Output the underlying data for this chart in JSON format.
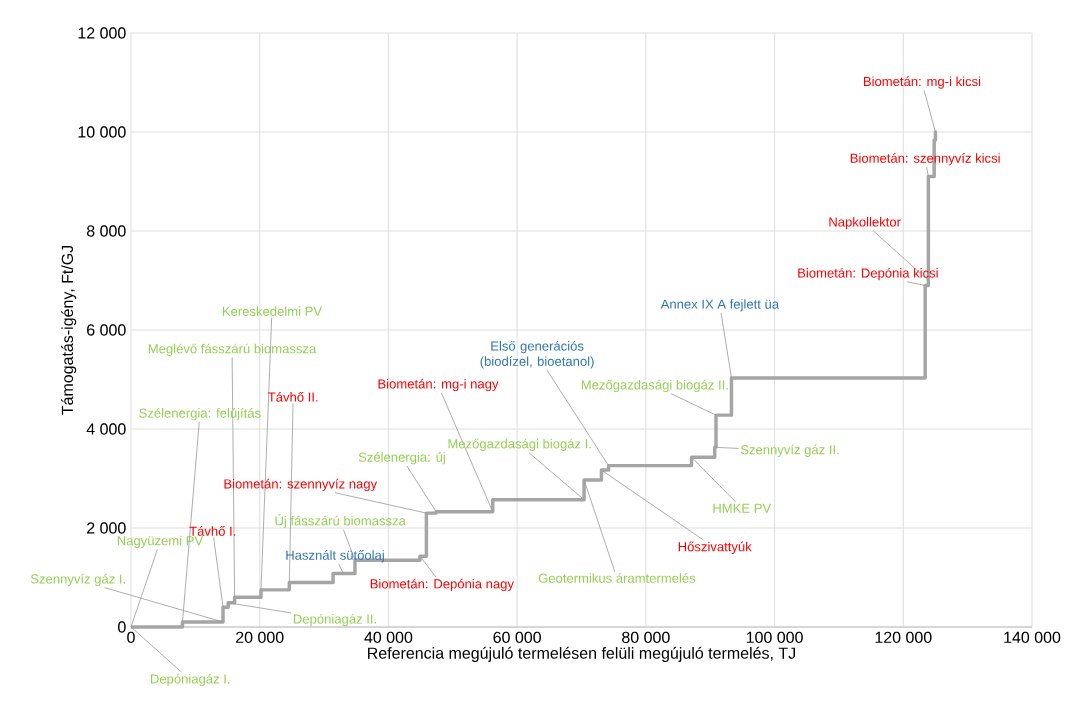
{
  "chart_data": {
    "type": "step",
    "xlabel": "Referencia megújuló termelésen felüli megújuló termelés, TJ",
    "ylabel": "Támogatás-igény, Ft/GJ",
    "x": [
      0,
      8000,
      14300,
      15100,
      16100,
      20200,
      24600,
      31400,
      34800,
      44900,
      45900,
      47400,
      56200,
      70400,
      73100,
      74200,
      87100,
      90700,
      90900,
      93300,
      123400,
      123900,
      124800,
      125000,
      125200
    ],
    "values": [
      0,
      100,
      400,
      490,
      600,
      750,
      900,
      1080,
      1350,
      1430,
      2300,
      2330,
      2570,
      2970,
      3170,
      3260,
      3430,
      3630,
      4280,
      5030,
      6900,
      9100,
      9840,
      10000,
      10000
    ],
    "color": "#a5a5a5",
    "xlim": [
      0,
      140000
    ],
    "ylim": [
      0,
      12000
    ],
    "xticks": [
      0,
      {
        "value": 20000,
        "label": "20 000"
      },
      {
        "value": 40000,
        "label": "40 000"
      },
      {
        "value": 60000,
        "label": "60 000"
      },
      {
        "value": 80000,
        "label": "80 000"
      },
      {
        "value": 100000,
        "label": "100 000"
      },
      {
        "value": 120000,
        "label": "120 000"
      },
      {
        "value": 140000,
        "label": "140 000"
      }
    ],
    "yticks": [
      0,
      {
        "value": 2000,
        "label": "2 000"
      },
      {
        "value": 4000,
        "label": "4 000"
      },
      {
        "value": 6000,
        "label": "6 000"
      },
      {
        "value": 8000,
        "label": "8 000"
      },
      {
        "value": 10000,
        "label": "10 000"
      },
      {
        "value": 12000,
        "label": "12 000"
      }
    ],
    "grid": true,
    "annotations": [
      {
        "text": "Depóniagáz I.",
        "x": 0,
        "y": 0
      },
      {
        "text": "Nagyüzemi PV",
        "x": 0,
        "y": 0
      },
      {
        "text": "Szennyvíz gáz I.",
        "x": 14300,
        "y": 100
      },
      {
        "text": "Szélenergia: felújítás",
        "x": 8000,
        "y": 100
      },
      {
        "text": "Meglévő fásszárú biomassza",
        "x": 16100,
        "y": 600
      },
      {
        "text": "Kereskedelmi PV",
        "x": 20200,
        "y": 750
      },
      {
        "text": "Távhő I.",
        "x": 14300,
        "y": 400
      },
      {
        "text": "Távhő II.",
        "x": 24600,
        "y": 900
      },
      {
        "text": "Depóniagáz II.",
        "x": 15100,
        "y": 490
      },
      {
        "text": "Új fásszárú biomassza",
        "x": 34800,
        "y": 1350
      },
      {
        "text": "Használt sütőolaj",
        "x": 33000,
        "y": 1080
      },
      {
        "text": "Biometán: szennyvíz nagy",
        "x": 45900,
        "y": 2300
      },
      {
        "text": "Szélenergia: új",
        "x": 47400,
        "y": 2330
      },
      {
        "text": "Biometán: Depónia nagy",
        "x": 44900,
        "y": 1430
      },
      {
        "text": "Biometán: mg-i nagy",
        "x": 56200,
        "y": 2330
      },
      {
        "text": "Mezőgazdasági biogáz I.",
        "x": 70400,
        "y": 2570
      },
      {
        "text": "Első generációs (biodízel, bioetanol)",
        "x": 74200,
        "y": 3260
      },
      {
        "text": "Geotermikus áramtermelés",
        "x": 70400,
        "y": 2970
      },
      {
        "text": "Hőszivattyúk",
        "x": 73100,
        "y": 3170
      },
      {
        "text": "HMKE PV",
        "x": 87100,
        "y": 3430
      },
      {
        "text": "Mezőgazdasági biogáz II.",
        "x": 90900,
        "y": 4280
      },
      {
        "text": "Szennyvíz gáz II.",
        "x": 90700,
        "y": 3630
      },
      {
        "text": "Annex IX A fejlett üa",
        "x": 93300,
        "y": 5030
      },
      {
        "text": "Biometán: Depónia kicsi",
        "x": 123400,
        "y": 6900
      },
      {
        "text": "Napkollektor",
        "x": 123900,
        "y": 7000
      },
      {
        "text": "Biometán: szennyvíz kicsi",
        "x": 123900,
        "y": 9100
      },
      {
        "text": "Biometán: mg-i kicsi",
        "x": 125000,
        "y": 10000
      }
    ]
  }
}
